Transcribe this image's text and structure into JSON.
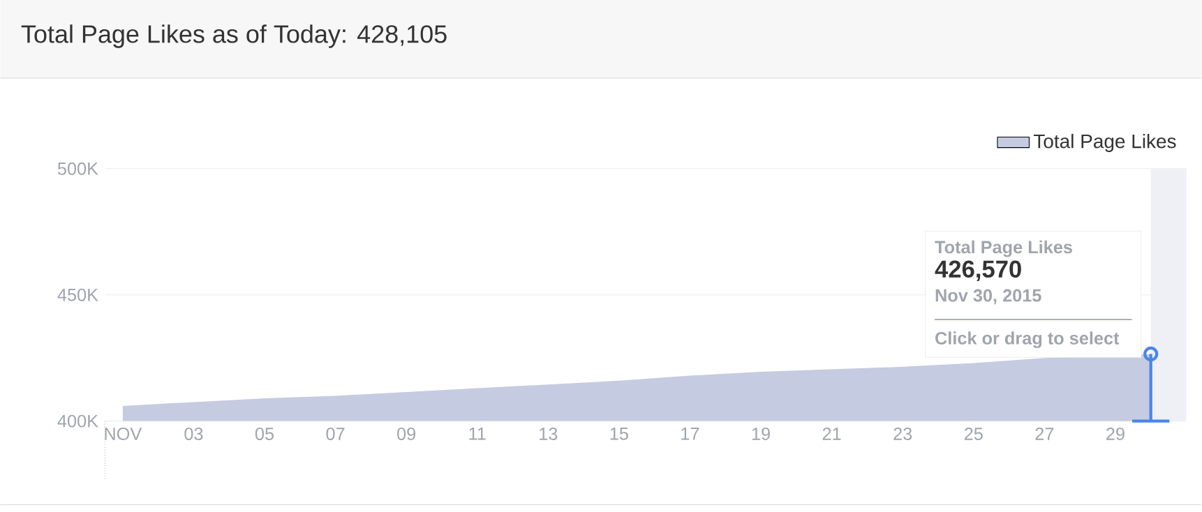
{
  "chart_data": {
    "type": "area",
    "title": "Total Page Likes as of Today: 428,105",
    "x": [
      1,
      3,
      5,
      7,
      9,
      11,
      13,
      15,
      17,
      19,
      21,
      23,
      25,
      27,
      30
    ],
    "series": [
      {
        "name": "Total Page Likes",
        "color": "#c5cbe0",
        "values": [
          406000,
          407500,
          409000,
          410000,
          411500,
          413000,
          414500,
          416000,
          418000,
          419500,
          420500,
          421500,
          423000,
          425000,
          426570
        ]
      },
      {
        "type": "lollipop",
        "color": "#4a86e8",
        "x": [
          30
        ],
        "values": [
          426570
        ]
      }
    ],
    "xlim": [
      0.5,
      31
    ],
    "xticks": [
      {
        "value": 1,
        "label": "NOV"
      },
      {
        "value": 3,
        "label": "03"
      },
      {
        "value": 5,
        "label": "05"
      },
      {
        "value": 7,
        "label": "07"
      },
      {
        "value": 9,
        "label": "09"
      },
      {
        "value": 11,
        "label": "11"
      },
      {
        "value": 13,
        "label": "13"
      },
      {
        "value": 15,
        "label": "15"
      },
      {
        "value": 17,
        "label": "17"
      },
      {
        "value": 19,
        "label": "19"
      },
      {
        "value": 21,
        "label": "21"
      },
      {
        "value": 23,
        "label": "23"
      },
      {
        "value": 25,
        "label": "25"
      },
      {
        "value": 27,
        "label": "27"
      },
      {
        "value": 29,
        "label": "29"
      }
    ],
    "ylim": [
      400000,
      500000
    ],
    "yticks": [
      {
        "value": 400000,
        "label": "400K"
      },
      {
        "value": 450000,
        "label": "450K"
      },
      {
        "value": 500000,
        "label": "500K"
      }
    ],
    "bands": [
      {
        "axis": "x",
        "from": 30,
        "to": 31,
        "color": "#eef0f5"
      }
    ],
    "annotations": [
      "Total Page Likes",
      "426,570",
      "Nov 30, 2015",
      "Click or drag to select"
    ],
    "grid": "y",
    "legend": "top right"
  }
}
